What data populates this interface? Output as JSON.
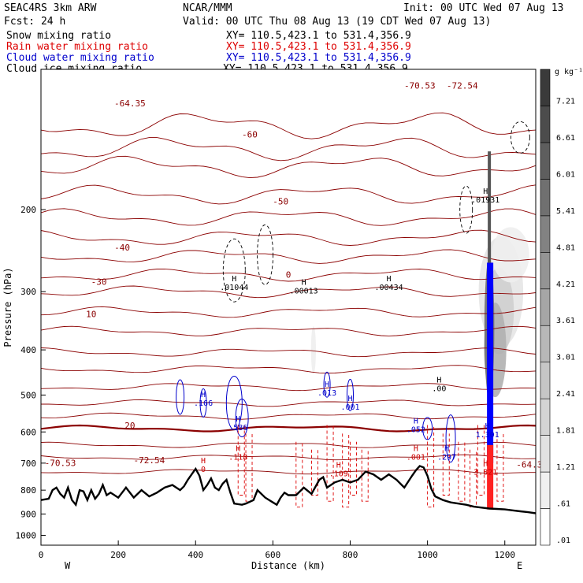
{
  "header": {
    "model": "SEAC4RS   3km ARW",
    "center": "NCAR/MMM",
    "init": "Init: 00 UTC Wed 07 Aug 13",
    "fcst": "Fcst:    24 h",
    "valid": "Valid: 00 UTC Thu 08 Aug 13 (19 CDT Wed 07 Aug 13)",
    "fields": [
      {
        "name": "Snow mixing ratio",
        "xy": "XY= 110.5,423.1 to 531.4,356.9",
        "color": "#000000"
      },
      {
        "name": "Rain water mixing ratio",
        "xy": "XY= 110.5,423.1 to 531.4,356.9",
        "color": "#dd0000"
      },
      {
        "name": "Cloud water mixing ratio",
        "xy": "XY= 110.5,423.1 to 531.4,356.9",
        "color": "#0000cc"
      },
      {
        "name": "Cloud ice mixing ratio",
        "xy": "XY= 110.5,423.1 to 531.4,356.9",
        "color": "#000000"
      }
    ]
  },
  "chart_data": {
    "type": "cross-section",
    "xlabel": "Distance (km)",
    "ylabel": "Pressure (hPa)",
    "xlim": [
      0,
      1280
    ],
    "ylim": [
      1050,
      100
    ],
    "y_scale": "log",
    "x_ticks": [
      0,
      200,
      400,
      600,
      800,
      1000,
      1200
    ],
    "y_ticks": [
      200,
      300,
      400,
      500,
      600,
      700,
      800,
      900,
      1000
    ],
    "x_end_labels": {
      "left": "W",
      "right": "E"
    },
    "colorbar": {
      "unit": "g kg⁻¹",
      "levels": [
        0.01,
        0.61,
        1.21,
        1.81,
        2.41,
        3.01,
        3.61,
        4.21,
        4.81,
        5.41,
        6.01,
        6.61,
        7.21
      ],
      "level_labels": [
        ".01",
        ".61",
        "1.21",
        "1.81",
        "2.41",
        "3.01",
        "3.61",
        "4.21",
        "4.81",
        "5.41",
        "6.01",
        "6.61",
        "7.21"
      ],
      "colors": [
        "#ffffff",
        "#f0f0f0",
        "#e2e2e2",
        "#d4d4d4",
        "#c6c6c6",
        "#b8b8b8",
        "#a6a6a6",
        "#949494",
        "#828282",
        "#707070",
        "#5e5e5e",
        "#4c4c4c",
        "#3a3a3a"
      ]
    },
    "terrain_pressure": [
      [
        0,
        840
      ],
      [
        20,
        835
      ],
      [
        30,
        800
      ],
      [
        40,
        790
      ],
      [
        50,
        815
      ],
      [
        60,
        830
      ],
      [
        70,
        790
      ],
      [
        80,
        840
      ],
      [
        90,
        860
      ],
      [
        100,
        800
      ],
      [
        110,
        805
      ],
      [
        120,
        840
      ],
      [
        130,
        800
      ],
      [
        140,
        835
      ],
      [
        150,
        815
      ],
      [
        160,
        780
      ],
      [
        170,
        820
      ],
      [
        180,
        810
      ],
      [
        200,
        830
      ],
      [
        210,
        810
      ],
      [
        220,
        790
      ],
      [
        240,
        830
      ],
      [
        260,
        800
      ],
      [
        280,
        825
      ],
      [
        300,
        810
      ],
      [
        320,
        790
      ],
      [
        340,
        780
      ],
      [
        360,
        800
      ],
      [
        370,
        785
      ],
      [
        380,
        760
      ],
      [
        390,
        740
      ],
      [
        400,
        720
      ],
      [
        410,
        745
      ],
      [
        420,
        800
      ],
      [
        430,
        780
      ],
      [
        440,
        755
      ],
      [
        450,
        790
      ],
      [
        460,
        800
      ],
      [
        470,
        775
      ],
      [
        480,
        760
      ],
      [
        490,
        810
      ],
      [
        500,
        855
      ],
      [
        520,
        860
      ],
      [
        530,
        855
      ],
      [
        550,
        840
      ],
      [
        560,
        800
      ],
      [
        580,
        830
      ],
      [
        600,
        850
      ],
      [
        610,
        860
      ],
      [
        620,
        830
      ],
      [
        630,
        810
      ],
      [
        640,
        820
      ],
      [
        660,
        820
      ],
      [
        680,
        790
      ],
      [
        700,
        815
      ],
      [
        720,
        760
      ],
      [
        730,
        750
      ],
      [
        740,
        790
      ],
      [
        760,
        770
      ],
      [
        780,
        760
      ],
      [
        800,
        770
      ],
      [
        820,
        760
      ],
      [
        840,
        730
      ],
      [
        860,
        740
      ],
      [
        880,
        760
      ],
      [
        900,
        740
      ],
      [
        920,
        760
      ],
      [
        940,
        790
      ],
      [
        960,
        745
      ],
      [
        970,
        725
      ],
      [
        980,
        710
      ],
      [
        990,
        715
      ],
      [
        1000,
        745
      ],
      [
        1010,
        795
      ],
      [
        1020,
        825
      ],
      [
        1040,
        840
      ],
      [
        1060,
        850
      ],
      [
        1080,
        855
      ],
      [
        1100,
        860
      ],
      [
        1120,
        868
      ],
      [
        1140,
        872
      ],
      [
        1160,
        876
      ],
      [
        1180,
        878
      ],
      [
        1200,
        880
      ],
      [
        1220,
        884
      ],
      [
        1240,
        888
      ],
      [
        1260,
        892
      ],
      [
        1280,
        897
      ]
    ],
    "isotherms_C": [
      -70,
      -60,
      -50,
      -40,
      -30,
      -20,
      -10,
      0,
      10,
      20
    ],
    "isotherm_labels": [
      "-70.53",
      "-72.54",
      "-64.35",
      "-60",
      "-50",
      "-40",
      "-30",
      "0",
      "10",
      "20"
    ],
    "maxima_labels": [
      {
        "field": "snow",
        "label": "H",
        "value": ".01044",
        "x": 500,
        "p": 285
      },
      {
        "field": "snow",
        "label": "H",
        "value": ".00013",
        "x": 680,
        "p": 290
      },
      {
        "field": "snow",
        "label": "H",
        "value": ".00434",
        "x": 900,
        "p": 285
      },
      {
        "field": "snow",
        "label": "H",
        "value": ".00",
        "x": 1030,
        "p": 470
      },
      {
        "field": "snow",
        "label": "H",
        "value": ".01931",
        "x": 1150,
        "p": 185
      },
      {
        "field": "cloud",
        "label": "H",
        "value": ".166",
        "x": 420,
        "p": 505
      },
      {
        "field": "cloud",
        "label": "H",
        "value": ".013",
        "x": 740,
        "p": 480
      },
      {
        "field": "cloud",
        "label": "H",
        "value": ".001",
        "x": 800,
        "p": 515
      },
      {
        "field": "cloud",
        "label": "H",
        "value": ".586",
        "x": 510,
        "p": 570
      },
      {
        "field": "cloud",
        "label": "H",
        "value": ".052",
        "x": 970,
        "p": 575
      },
      {
        "field": "cloud",
        "label": "H",
        "value": ".297",
        "x": 1050,
        "p": 660
      },
      {
        "field": "cloud",
        "label": "H",
        "value": "1.301",
        "x": 1155,
        "p": 590
      },
      {
        "field": "rain",
        "label": "H",
        "value": ".118",
        "x": 510,
        "p": 660
      },
      {
        "field": "rain",
        "label": "H",
        "value": ".109",
        "x": 770,
        "p": 715
      },
      {
        "field": "rain",
        "label": "H",
        "value": ".001",
        "x": 970,
        "p": 660
      },
      {
        "field": "rain",
        "label": "H",
        "value": "3.821",
        "x": 1150,
        "p": 710
      },
      {
        "field": "rain",
        "label": "H",
        "value": "0",
        "x": 420,
        "p": 700
      }
    ]
  }
}
